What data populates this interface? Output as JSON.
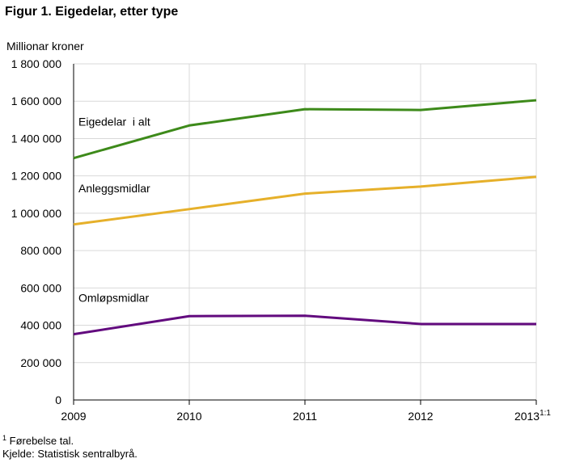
{
  "figure": {
    "title": "Figur 1. Eigedelar, etter type"
  },
  "chart_data": {
    "type": "line",
    "ylabel": "Millionar kroner",
    "xlabel": "",
    "x": [
      2009,
      2010,
      2011,
      2012,
      2013
    ],
    "x_tick_labels": [
      "2009",
      "2010",
      "2011",
      "2012",
      "2013"
    ],
    "x_tick_suffix_last": "1:1",
    "ylim": [
      0,
      1800000
    ],
    "y_ticks": [
      0,
      200000,
      400000,
      600000,
      800000,
      1000000,
      1200000,
      1400000,
      1600000,
      1800000
    ],
    "y_tick_labels": [
      "0",
      "200 000",
      "400 000",
      "600 000",
      "800 000",
      "1 000 000",
      "1 200 000",
      "1 400 000",
      "1 600 000",
      "1 800 000"
    ],
    "grid": true,
    "series": [
      {
        "name": "Eigedelar  i alt",
        "color": "#3d8a1a",
        "values": [
          1295000,
          1470000,
          1557000,
          1553000,
          1605000
        ]
      },
      {
        "name": "Anleggsmidlar",
        "color": "#e6b02a",
        "values": [
          940000,
          1022000,
          1105000,
          1143000,
          1195000
        ]
      },
      {
        "name": "Omløpsmidlar",
        "color": "#620a7e",
        "values": [
          352000,
          449000,
          451000,
          407000,
          407000
        ]
      }
    ]
  },
  "footnotes": {
    "mark": "1",
    "note": "Førebelse tal.",
    "source": "Kjelde: Statistisk sentralbyrå."
  }
}
